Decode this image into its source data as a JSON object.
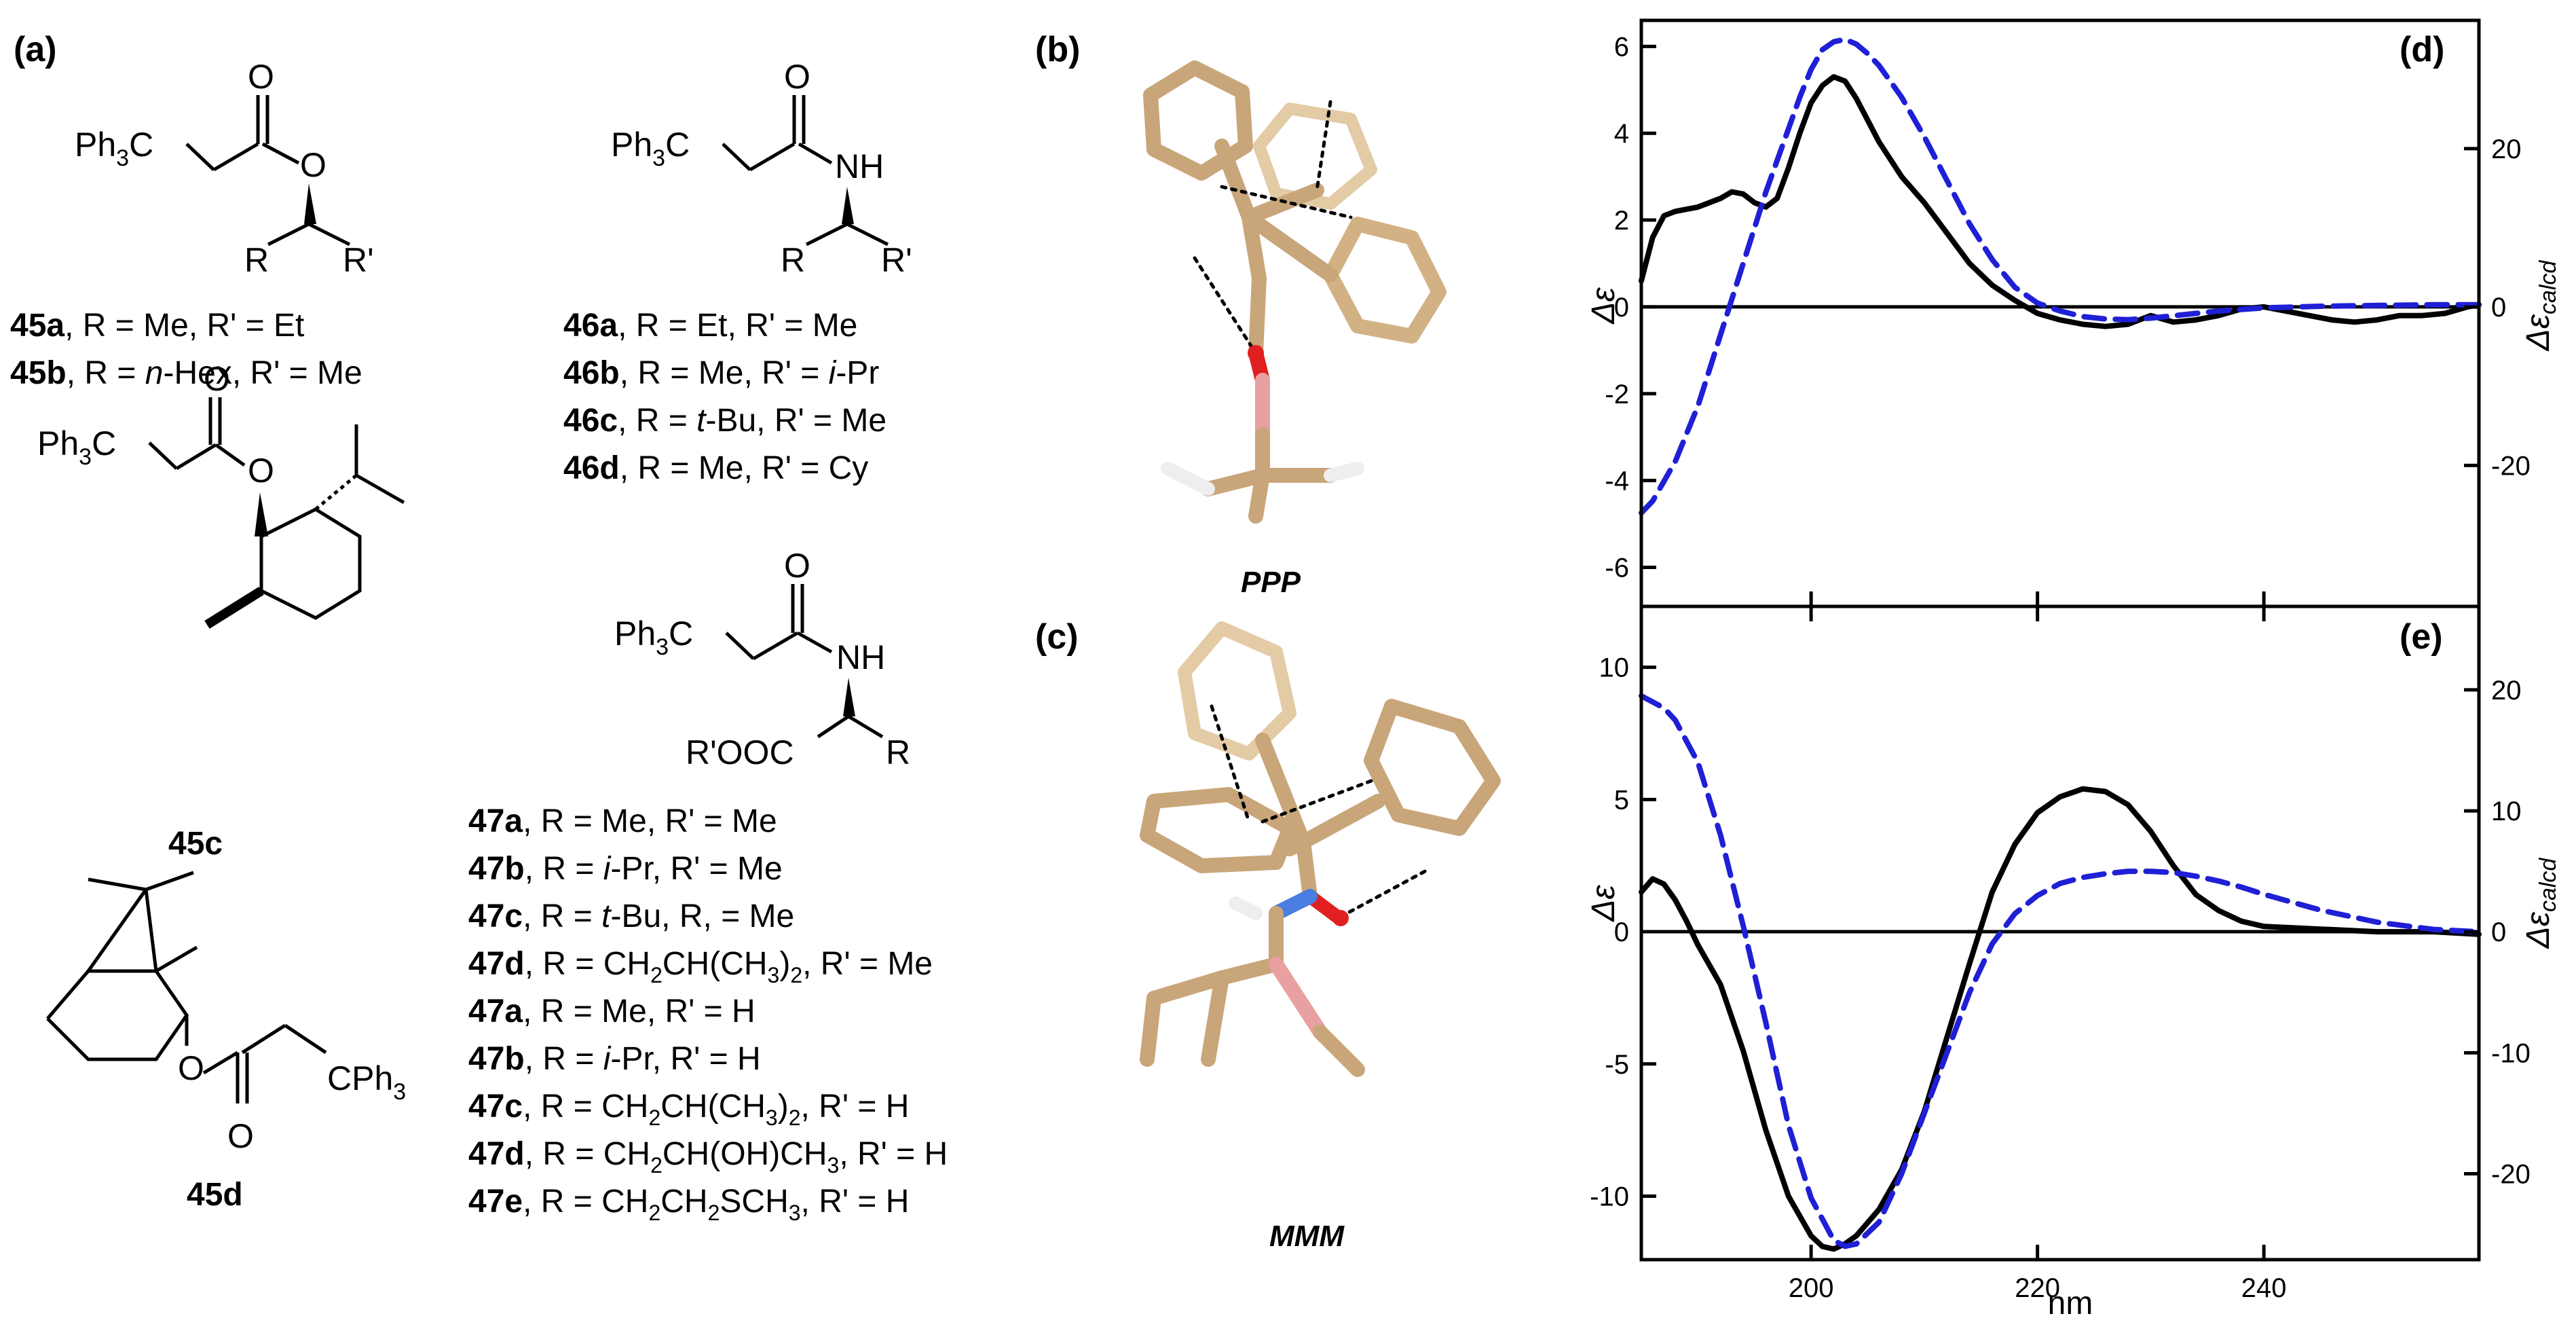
{
  "panel_letters": {
    "a": "(a)",
    "b": "(b)",
    "c": "(c)",
    "d": "(d)",
    "e": "(e)"
  },
  "structures": {
    "s45ab": {
      "group": "Ph",
      "sub3": "3",
      "c": "C",
      "O1": "O",
      "O2": "O",
      "R": "R",
      "Rp": "R'"
    },
    "s46": {
      "group": "Ph",
      "sub3": "3",
      "c": "C",
      "O": "O",
      "NH": "NH",
      "R": "R",
      "Rp": "R'"
    },
    "s45c": {
      "group": "Ph",
      "sub3": "3",
      "c": "C",
      "O1": "O",
      "O2": "O"
    },
    "s47": {
      "group": "Ph",
      "sub3": "3",
      "c": "C",
      "O": "O",
      "NH": "NH",
      "ester": "R'OOC",
      "R": "R"
    },
    "s45d": {
      "O1": "O",
      "O2": "O",
      "cph": "CPh",
      "sub3": "3"
    }
  },
  "compounds": {
    "c45a": {
      "id": "45a",
      "text": ", R = Me, R' = Et"
    },
    "c45b": {
      "id": "45b",
      "pre": ", R = ",
      "it": "n",
      "post": "-Hex, R' = Me"
    },
    "c45c": {
      "id": "45c"
    },
    "c45d": {
      "id": "45d"
    },
    "c46a": {
      "id": "46a",
      "text": ", R = Et, R' = Me"
    },
    "c46b": {
      "id": "46b",
      "pre": ", R = Me, R' = ",
      "it": "i",
      "post": "-Pr"
    },
    "c46c": {
      "id": "46c",
      "pre": ", R = ",
      "it": "t",
      "post": "-Bu, R' = Me"
    },
    "c46d": {
      "id": "46d",
      "text": ", R = Me, R' = Cy"
    },
    "r1": {
      "id": "47a",
      "text": ", R = Me, R' = Me"
    },
    "r2": {
      "id": "47b",
      "pre": ", R = ",
      "it": "i",
      "post": "-Pr, R' = Me"
    },
    "r3": {
      "id": "47c",
      "pre": ", R = ",
      "it": "t",
      "post": "-Bu, R, = Me"
    },
    "r4": {
      "id": "47d",
      "t1": ", R = CH",
      "s1": "2",
      "t2": "CH(CH",
      "s2": "3",
      "t3": ")",
      "s3": "2",
      "t4": ", R' = Me"
    },
    "r5": {
      "id": "47a",
      "text": ", R = Me, R' = H"
    },
    "r6": {
      "id": "47b",
      "pre": ", R = ",
      "it": "i",
      "post": "-Pr, R' = H"
    },
    "r7": {
      "id": "47c",
      "t1": ", R = CH",
      "s1": "2",
      "t2": "CH(CH",
      "s2": "3",
      "t3": ")",
      "s3": "2",
      "t4": ", R' = H"
    },
    "r8": {
      "id": "47d",
      "t1": ", R = CH",
      "s1": "2",
      "t2": "CH(OH)CH",
      "s2": "3",
      "t4": ", R' = H"
    },
    "r9": {
      "id": "47e",
      "t1": ",  R = CH",
      "s1": "2",
      "t2": "CH",
      "s2": "2",
      "t3": "SCH",
      "s3": "3",
      "t4": ", R' = H"
    }
  },
  "conformers": {
    "b": "PPP",
    "c": "MMM"
  },
  "colors": {
    "experimental": "#000000",
    "calculated": "#1f1fd6",
    "carbon": "#cfae84",
    "oxygen": "#e02020",
    "nitrogen": "#4a7ee0",
    "hydrogen": "#f2f2f2"
  },
  "chart_data": [
    {
      "type": "line",
      "panel": "d",
      "xlabel": "nm",
      "ylabel": "Δε",
      "y2label": "Δε_calcd",
      "xlim": [
        185,
        259
      ],
      "ylim": [
        -6.9,
        6.6
      ],
      "y2lim": [
        -37.8,
        36.2
      ],
      "xticks": [
        200,
        220,
        240
      ],
      "yticks": [
        -6,
        -4,
        -2,
        0,
        2,
        4,
        6
      ],
      "y2ticks": [
        -20,
        0,
        20
      ],
      "series": [
        {
          "style": "solid",
          "axis": "left",
          "x": [
            185,
            186,
            187,
            188,
            190,
            192,
            193,
            194,
            195,
            196,
            197,
            198,
            199,
            200,
            201,
            202,
            203,
            204,
            205,
            206,
            207,
            208,
            210,
            212,
            214,
            216,
            218,
            220,
            222,
            224,
            226,
            228,
            230,
            232,
            234,
            236,
            238,
            240,
            242,
            244,
            246,
            248,
            250,
            252,
            254,
            256,
            258,
            259
          ],
          "y": [
            0.6,
            1.6,
            2.1,
            2.2,
            2.3,
            2.5,
            2.65,
            2.6,
            2.4,
            2.3,
            2.5,
            3.2,
            4.0,
            4.7,
            5.1,
            5.3,
            5.2,
            4.8,
            4.3,
            3.8,
            3.4,
            3.0,
            2.4,
            1.7,
            1.0,
            0.5,
            0.15,
            -0.15,
            -0.3,
            -0.4,
            -0.45,
            -0.4,
            -0.2,
            -0.35,
            -0.3,
            -0.2,
            -0.05,
            0.0,
            -0.1,
            -0.2,
            -0.3,
            -0.35,
            -0.3,
            -0.2,
            -0.2,
            -0.15,
            0.0,
            0.05
          ]
        },
        {
          "style": "dashed",
          "axis": "right",
          "x": [
            185,
            186,
            188,
            190,
            191,
            192,
            193,
            194,
            195,
            196,
            197,
            198,
            199,
            200,
            201,
            202,
            203,
            204,
            205,
            206,
            207,
            208,
            210,
            212,
            214,
            216,
            218,
            220,
            222,
            224,
            226,
            228,
            230,
            232,
            234,
            236,
            238,
            240,
            245,
            250,
            255,
            259
          ],
          "y": [
            -26.0,
            -24.5,
            -19.5,
            -12.5,
            -8.0,
            -3.5,
            1.0,
            5.5,
            10.0,
            14.5,
            18.5,
            22.5,
            26.5,
            30.0,
            32.5,
            33.5,
            33.8,
            33.2,
            32.0,
            30.5,
            28.5,
            26.5,
            21.5,
            16.0,
            10.5,
            6.0,
            2.5,
            0.5,
            -0.5,
            -1.2,
            -1.5,
            -1.6,
            -1.4,
            -1.1,
            -0.8,
            -0.5,
            -0.3,
            -0.1,
            0.1,
            0.2,
            0.3,
            0.3
          ]
        }
      ]
    },
    {
      "type": "line",
      "panel": "e",
      "xlabel": "nm",
      "ylabel": "Δε",
      "y2label": "Δε_calcd",
      "xlim": [
        185,
        259
      ],
      "ylim": [
        -12.4,
        12.3
      ],
      "y2lim": [
        -27.1,
        26.9
      ],
      "xticks": [
        200,
        220,
        240
      ],
      "yticks": [
        -10,
        -5,
        0,
        5,
        10
      ],
      "y2ticks": [
        -20,
        -10,
        0,
        10,
        20
      ],
      "series": [
        {
          "style": "solid",
          "axis": "left",
          "x": [
            185,
            186,
            187,
            188,
            189,
            190,
            192,
            194,
            196,
            198,
            200,
            201,
            202,
            203,
            204,
            206,
            208,
            210,
            212,
            214,
            216,
            218,
            220,
            222,
            224,
            226,
            228,
            230,
            232,
            234,
            236,
            238,
            240,
            245,
            250,
            255,
            259
          ],
          "y": [
            1.5,
            2.0,
            1.8,
            1.2,
            0.4,
            -0.5,
            -2.0,
            -4.5,
            -7.5,
            -10.0,
            -11.5,
            -11.9,
            -12.0,
            -11.8,
            -11.5,
            -10.5,
            -9.0,
            -6.8,
            -4.0,
            -1.2,
            1.5,
            3.3,
            4.5,
            5.1,
            5.4,
            5.3,
            4.8,
            3.8,
            2.5,
            1.4,
            0.8,
            0.4,
            0.2,
            0.1,
            0.0,
            0.0,
            -0.1
          ]
        },
        {
          "style": "dashed",
          "axis": "right",
          "x": [
            185,
            186,
            187,
            188,
            190,
            192,
            194,
            196,
            198,
            200,
            202,
            203,
            204,
            206,
            208,
            210,
            212,
            214,
            216,
            218,
            220,
            222,
            224,
            226,
            228,
            230,
            232,
            234,
            236,
            238,
            240,
            245,
            250,
            255,
            259
          ],
          "y": [
            19.5,
            19.0,
            18.5,
            17.5,
            14.0,
            8.0,
            0.5,
            -7.5,
            -16.0,
            -22.0,
            -25.5,
            -26.0,
            -25.8,
            -24.0,
            -20.0,
            -15.0,
            -10.0,
            -5.0,
            -1.0,
            1.5,
            3.0,
            4.0,
            4.5,
            4.8,
            5.0,
            5.0,
            4.9,
            4.6,
            4.2,
            3.7,
            3.1,
            1.8,
            0.8,
            0.2,
            0.0
          ]
        }
      ]
    }
  ]
}
